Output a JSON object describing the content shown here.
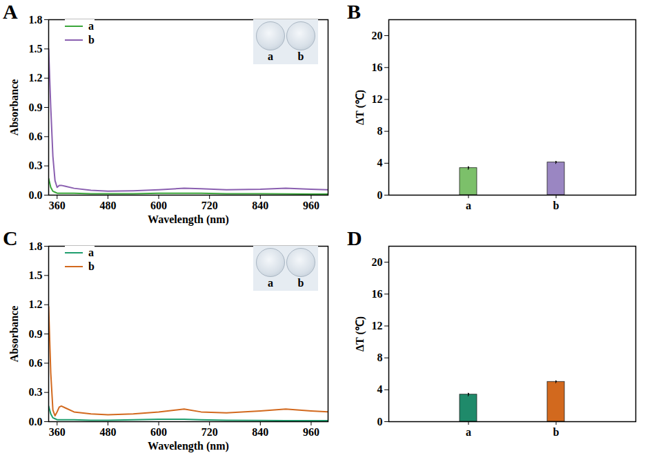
{
  "chart_data": [
    {
      "type": "line",
      "title": "A",
      "x_label": "Wavelength (nm)",
      "y_label": "Absorbance",
      "x": [
        340,
        345,
        350,
        355,
        360,
        365,
        370,
        380,
        400,
        440,
        480,
        540,
        600,
        660,
        700,
        760,
        840,
        900,
        960,
        1000
      ],
      "series": [
        {
          "name": "a",
          "color": "#3aa63a",
          "values": [
            0.17,
            0.08,
            0.04,
            0.03,
            0.02,
            0.02,
            0.02,
            0.02,
            0.02,
            0.015,
            0.015,
            0.015,
            0.02,
            0.02,
            0.02,
            0.015,
            0.015,
            0.012,
            0.01,
            0.01
          ]
        },
        {
          "name": "b",
          "color": "#8a5fb0",
          "values": [
            1.5,
            0.9,
            0.4,
            0.15,
            0.08,
            0.1,
            0.1,
            0.09,
            0.07,
            0.05,
            0.04,
            0.045,
            0.055,
            0.07,
            0.065,
            0.055,
            0.06,
            0.07,
            0.06,
            0.055
          ]
        }
      ],
      "xlim": [
        340,
        1000
      ],
      "xticks": [
        360,
        480,
        600,
        720,
        840,
        960
      ],
      "ylim": [
        0,
        1.8
      ],
      "yticks": [
        {
          "value": 0,
          "label": "0.0"
        },
        0.3,
        0.6,
        0.9,
        1.2,
        1.5,
        1.8
      ],
      "legend": "top-left",
      "annotations": [
        "a",
        "b"
      ]
    },
    {
      "type": "bar",
      "title": "B",
      "y_label": "ΔT (℃)",
      "categories": [
        "a",
        "b"
      ],
      "values": [
        3.4,
        4.1
      ],
      "errors": [
        0.15,
        0.12
      ],
      "colors": [
        "#7cc06a",
        "#9a86c2"
      ],
      "ylim": [
        0,
        22
      ],
      "yticks": [
        0,
        4,
        8,
        12,
        16,
        20
      ]
    },
    {
      "type": "line",
      "title": "C",
      "x_label": "Wavelength (nm)",
      "y_label": "Absorbance",
      "x": [
        340,
        345,
        350,
        355,
        360,
        365,
        370,
        380,
        400,
        440,
        480,
        540,
        600,
        660,
        700,
        760,
        840,
        900,
        960,
        1000
      ],
      "series": [
        {
          "name": "a",
          "color": "#1f9e6e",
          "values": [
            0.16,
            0.08,
            0.04,
            0.03,
            0.02,
            0.02,
            0.02,
            0.02,
            0.02,
            0.015,
            0.015,
            0.02,
            0.025,
            0.025,
            0.02,
            0.015,
            0.012,
            0.01,
            0.01,
            0.01
          ]
        },
        {
          "name": "b",
          "color": "#d2691e",
          "values": [
            1.18,
            0.5,
            0.12,
            0.06,
            0.1,
            0.15,
            0.16,
            0.14,
            0.1,
            0.08,
            0.07,
            0.08,
            0.1,
            0.13,
            0.1,
            0.09,
            0.11,
            0.13,
            0.11,
            0.1
          ]
        }
      ],
      "xlim": [
        340,
        1000
      ],
      "xticks": [
        360,
        480,
        600,
        720,
        840,
        960
      ],
      "ylim": [
        0,
        1.8
      ],
      "yticks": [
        {
          "value": 0,
          "label": "0.0"
        },
        0.3,
        0.6,
        0.9,
        1.2,
        1.5,
        1.8
      ],
      "legend": "top-left",
      "annotations": [
        "a",
        "b"
      ]
    },
    {
      "type": "bar",
      "title": "D",
      "y_label": "ΔT (℃)",
      "categories": [
        "a",
        "b"
      ],
      "values": [
        3.4,
        5.0
      ],
      "errors": [
        0.15,
        0.1
      ],
      "colors": [
        "#1f8a6a",
        "#d2691e"
      ],
      "ylim": [
        0,
        22
      ],
      "yticks": [
        0,
        4,
        8,
        12,
        16,
        20
      ]
    }
  ]
}
